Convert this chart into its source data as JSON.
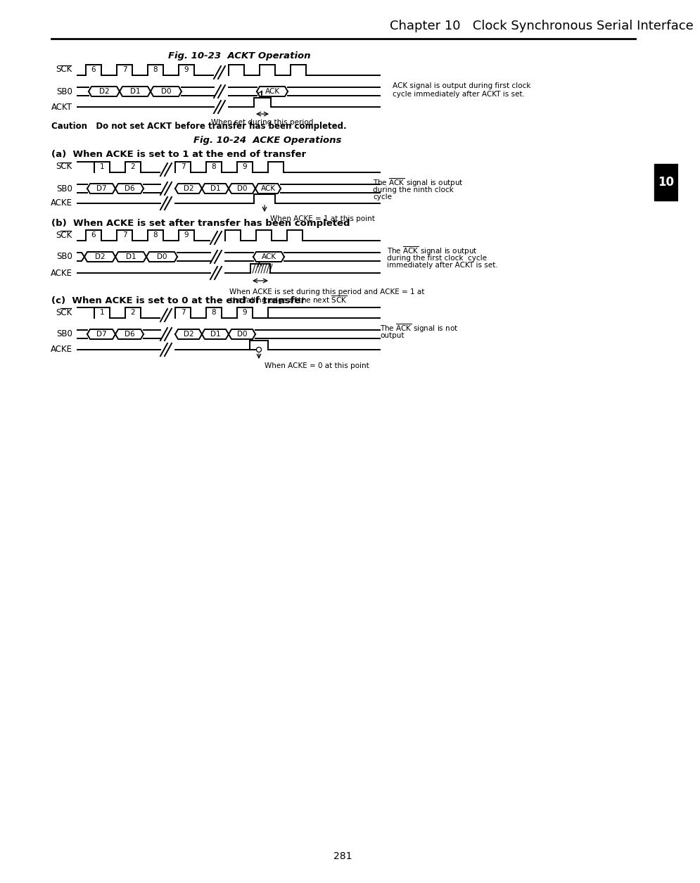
{
  "title": "Chapter 10   Clock Synchronous Serial Interface",
  "page_number": "281",
  "fig23_title": "Fig. 10-23  ACKT Operation",
  "fig24_title": "Fig. 10-24  ACKE Operations",
  "background_color": "#ffffff",
  "line_color": "#000000"
}
